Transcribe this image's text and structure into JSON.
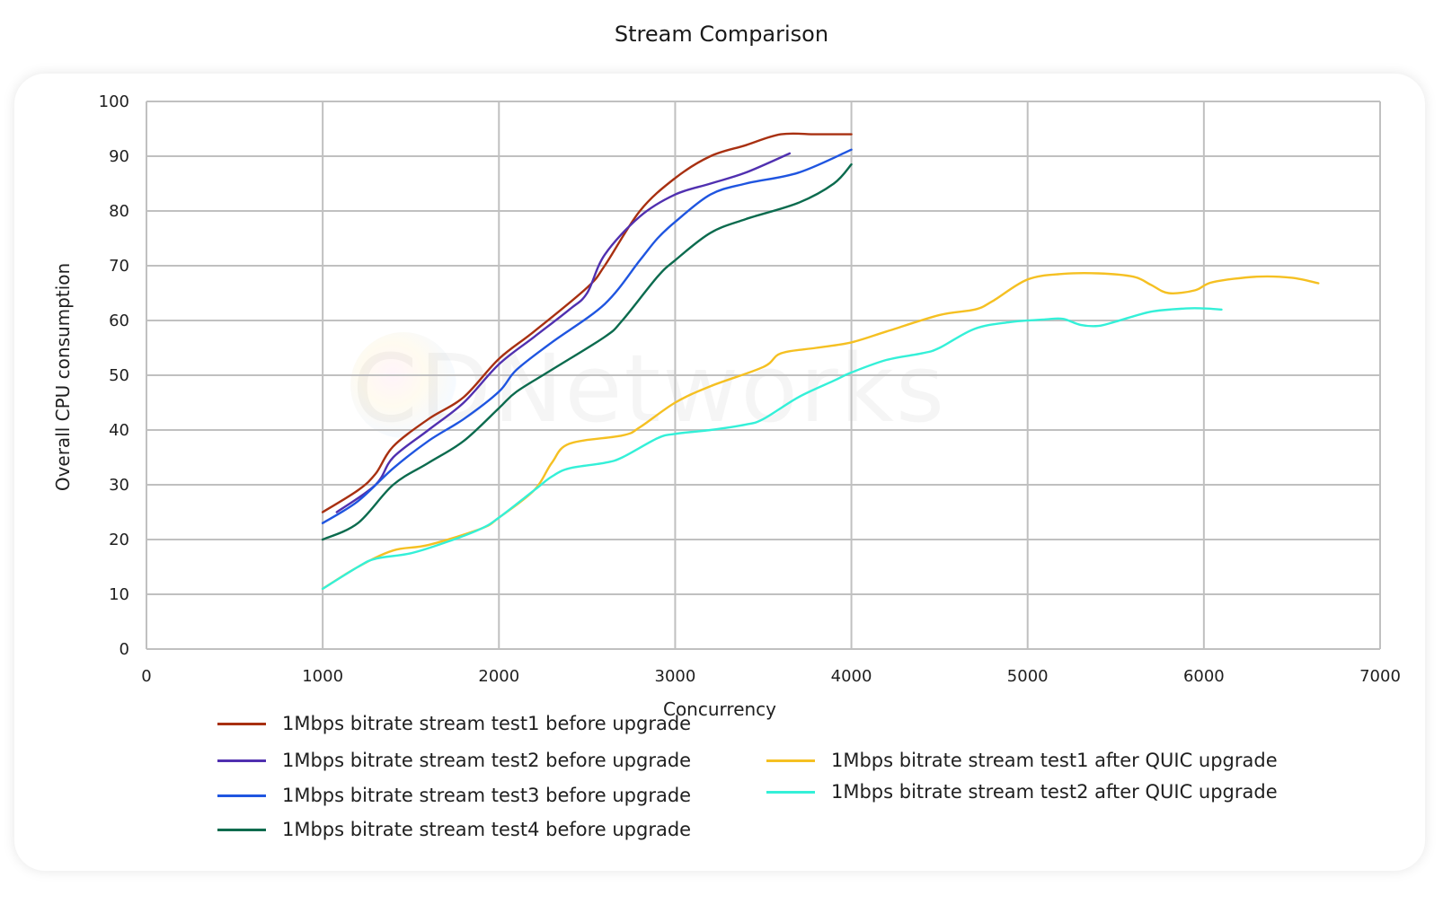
{
  "chart_data": {
    "type": "line",
    "title": "Stream Comparison",
    "xlabel": "Concurrency",
    "ylabel": "Overall CPU consumption",
    "xlim": [
      0,
      7000
    ],
    "ylim": [
      0,
      100
    ],
    "x_ticks": [
      0,
      1000,
      2000,
      3000,
      4000,
      5000,
      6000,
      7000
    ],
    "y_ticks": [
      0,
      10,
      20,
      30,
      40,
      50,
      60,
      70,
      80,
      90,
      100
    ],
    "grid": true,
    "legend_position": "bottom",
    "watermark": "CDNetworks",
    "series": [
      {
        "name": "1Mbps bitrate stream test1 before upgrade",
        "color": "#a83011",
        "points": [
          [
            1000,
            25
          ],
          [
            1200,
            29
          ],
          [
            1300,
            32
          ],
          [
            1400,
            37
          ],
          [
            1600,
            42
          ],
          [
            1800,
            46
          ],
          [
            2000,
            53
          ],
          [
            2200,
            58
          ],
          [
            2500,
            66
          ],
          [
            2600,
            70
          ],
          [
            2800,
            80
          ],
          [
            3000,
            86
          ],
          [
            3200,
            90
          ],
          [
            3400,
            92
          ],
          [
            3600,
            94
          ],
          [
            3800,
            94
          ],
          [
            4000,
            94
          ]
        ]
      },
      {
        "name": "1Mbps bitrate stream test2 before upgrade",
        "color": "#5030b0",
        "points": [
          [
            1080,
            25
          ],
          [
            1300,
            30
          ],
          [
            1400,
            35
          ],
          [
            1600,
            40
          ],
          [
            1800,
            45
          ],
          [
            2000,
            52
          ],
          [
            2200,
            57
          ],
          [
            2400,
            62
          ],
          [
            2500,
            65
          ],
          [
            2600,
            72
          ],
          [
            2800,
            79
          ],
          [
            3000,
            83
          ],
          [
            3200,
            85
          ],
          [
            3400,
            87
          ],
          [
            3650,
            90.5
          ]
        ]
      },
      {
        "name": "1Mbps bitrate stream test3 before upgrade",
        "color": "#1f55e0",
        "points": [
          [
            1000,
            23
          ],
          [
            1200,
            27
          ],
          [
            1400,
            33
          ],
          [
            1600,
            38
          ],
          [
            1800,
            42
          ],
          [
            2000,
            47
          ],
          [
            2100,
            51
          ],
          [
            2300,
            56
          ],
          [
            2600,
            63
          ],
          [
            2800,
            71
          ],
          [
            2900,
            75
          ],
          [
            3000,
            78
          ],
          [
            3200,
            83
          ],
          [
            3400,
            85
          ],
          [
            3700,
            87
          ],
          [
            4000,
            91.2
          ]
        ]
      },
      {
        "name": "1Mbps bitrate stream test4 before upgrade",
        "color": "#0b6b4e",
        "points": [
          [
            1000,
            20
          ],
          [
            1200,
            23
          ],
          [
            1400,
            30
          ],
          [
            1600,
            34
          ],
          [
            1800,
            38
          ],
          [
            2000,
            44
          ],
          [
            2100,
            47
          ],
          [
            2300,
            51
          ],
          [
            2600,
            57
          ],
          [
            2700,
            60
          ],
          [
            2900,
            68
          ],
          [
            3000,
            71
          ],
          [
            3200,
            76
          ],
          [
            3400,
            78.5
          ],
          [
            3700,
            81.5
          ],
          [
            3900,
            85
          ],
          [
            4000,
            88.5
          ]
        ]
      },
      {
        "name": "1Mbps bitrate stream test1 after QUIC upgrade",
        "color": "#f5c022",
        "points": [
          [
            1000,
            11
          ],
          [
            1200,
            15
          ],
          [
            1400,
            18
          ],
          [
            1600,
            19
          ],
          [
            1900,
            22
          ],
          [
            2000,
            24
          ],
          [
            2200,
            29
          ],
          [
            2300,
            34
          ],
          [
            2400,
            37.5
          ],
          [
            2700,
            39
          ],
          [
            2800,
            40.5
          ],
          [
            3000,
            45
          ],
          [
            3200,
            48
          ],
          [
            3500,
            51.5
          ],
          [
            3600,
            54
          ],
          [
            3800,
            55
          ],
          [
            4000,
            56
          ],
          [
            4200,
            58
          ],
          [
            4500,
            61
          ],
          [
            4700,
            62
          ],
          [
            4800,
            63.5
          ],
          [
            5000,
            67.5
          ],
          [
            5200,
            68.5
          ],
          [
            5400,
            68.6
          ],
          [
            5600,
            68
          ],
          [
            5700,
            66.5
          ],
          [
            5800,
            65
          ],
          [
            5950,
            65.5
          ],
          [
            6050,
            67
          ],
          [
            6300,
            68
          ],
          [
            6500,
            67.8
          ],
          [
            6650,
            66.8
          ]
        ]
      },
      {
        "name": "1Mbps bitrate stream test2 after QUIC upgrade",
        "color": "#34f0d8",
        "points": [
          [
            1000,
            11
          ],
          [
            1200,
            15
          ],
          [
            1300,
            16.5
          ],
          [
            1500,
            17.5
          ],
          [
            1700,
            19.5
          ],
          [
            1900,
            22
          ],
          [
            2000,
            24
          ],
          [
            2200,
            29
          ],
          [
            2300,
            31.5
          ],
          [
            2400,
            33
          ],
          [
            2600,
            34
          ],
          [
            2700,
            35
          ],
          [
            2900,
            38.5
          ],
          [
            3000,
            39.3
          ],
          [
            3200,
            40
          ],
          [
            3400,
            41
          ],
          [
            3500,
            42
          ],
          [
            3700,
            46
          ],
          [
            3900,
            49
          ],
          [
            4000,
            50.5
          ],
          [
            4200,
            52.8
          ],
          [
            4400,
            54
          ],
          [
            4500,
            55
          ],
          [
            4700,
            58.5
          ],
          [
            4900,
            59.7
          ],
          [
            5100,
            60.2
          ],
          [
            5200,
            60.3
          ],
          [
            5300,
            59.2
          ],
          [
            5400,
            59
          ],
          [
            5500,
            59.8
          ],
          [
            5700,
            61.6
          ],
          [
            5900,
            62.2
          ],
          [
            6000,
            62.2
          ],
          [
            6100,
            62
          ]
        ]
      }
    ]
  }
}
